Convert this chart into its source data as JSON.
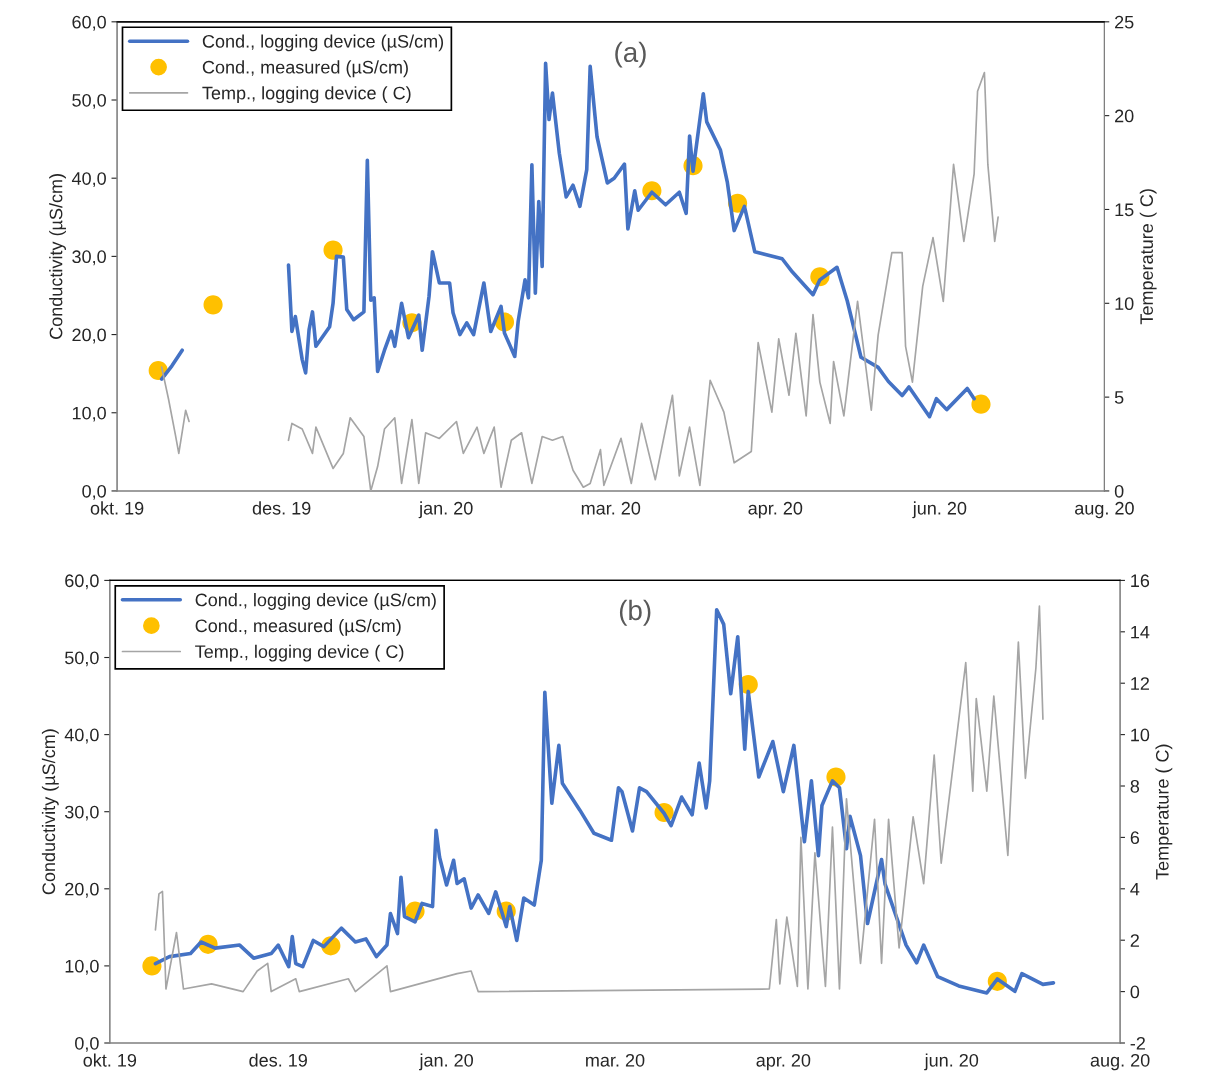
{
  "chart_data": [
    {
      "type": "line",
      "title": "(a)",
      "ylabel": "Conductivity (µS/cm)",
      "y2label": "Temperature ( C)",
      "legend": "top left",
      "grid": false,
      "xlim": [
        "2019-10-20",
        "2020-08-03"
      ],
      "xticks": [
        {
          "value": "2019-10-20",
          "label": "okt. 19"
        },
        {
          "value": "2019-12-07",
          "label": "des. 19"
        },
        {
          "value": "2020-01-24",
          "label": "jan. 20"
        },
        {
          "value": "2020-03-12",
          "label": "mar. 20"
        },
        {
          "value": "2020-04-29",
          "label": "apr. 20"
        },
        {
          "value": "2020-06-16",
          "label": "jun. 20"
        },
        {
          "value": "2020-08-03",
          "label": "aug. 20"
        }
      ],
      "ylim": [
        0,
        60
      ],
      "yticks": [
        {
          "value": 0,
          "label": "0,0"
        },
        {
          "value": 10,
          "label": "10,0"
        },
        {
          "value": 20,
          "label": "20,0"
        },
        {
          "value": 30,
          "label": "30,0"
        },
        {
          "value": 40,
          "label": "40,0"
        },
        {
          "value": 50,
          "label": "50,0"
        },
        {
          "value": 60,
          "label": "60,0"
        }
      ],
      "y2lim": [
        0,
        25
      ],
      "y2ticks": [
        0,
        5,
        10,
        15,
        20,
        25
      ],
      "series": [
        {
          "name": "Cond., logging device (µS/cm)",
          "color": "#4472c4",
          "marker": "none",
          "x": [
            "2019-11-02",
            "2019-11-05",
            "2019-11-08",
            "2019-11-20",
            "2019-12-09",
            "2019-12-10",
            "2019-12-11",
            "2019-12-13",
            "2019-12-14",
            "2019-12-15",
            "2019-12-16",
            "2019-12-17",
            "2019-12-21",
            "2019-12-22",
            "2019-12-23",
            "2019-12-25",
            "2019-12-26",
            "2019-12-28",
            "2019-12-31",
            "2020-01-01",
            "2020-01-02",
            "2020-01-03",
            "2020-01-04",
            "2020-01-06",
            "2020-01-08",
            "2020-01-09",
            "2020-01-11",
            "2020-01-13",
            "2020-01-16",
            "2020-01-17",
            "2020-01-19",
            "2020-01-20",
            "2020-01-22",
            "2020-01-25",
            "2020-01-26",
            "2020-01-28",
            "2020-01-30",
            "2020-02-01",
            "2020-02-04",
            "2020-02-06",
            "2020-02-09",
            "2020-02-10",
            "2020-02-13",
            "2020-02-14",
            "2020-02-16",
            "2020-02-17",
            "2020-02-18",
            "2020-02-19",
            "2020-02-20",
            "2020-02-21",
            "2020-02-22",
            "2020-02-23",
            "2020-02-24",
            "2020-02-26",
            "2020-02-28",
            "2020-03-01",
            "2020-03-03",
            "2020-03-05",
            "2020-03-06",
            "2020-03-08",
            "2020-03-11",
            "2020-03-13",
            "2020-03-16",
            "2020-03-17",
            "2020-03-19",
            "2020-03-20",
            "2020-03-24",
            "2020-03-28",
            "2020-04-01",
            "2020-04-03",
            "2020-04-04",
            "2020-04-05",
            "2020-04-08",
            "2020-04-09",
            "2020-04-13",
            "2020-04-15",
            "2020-04-17",
            "2020-04-20",
            "2020-04-23",
            "2020-05-01",
            "2020-05-04",
            "2020-05-10",
            "2020-05-12",
            "2020-05-17",
            "2020-05-20",
            "2020-05-24",
            "2020-05-29",
            "2020-06-01",
            "2020-06-05",
            "2020-06-07",
            "2020-06-13",
            "2020-06-15",
            "2020-06-18",
            "2020-06-24",
            "2020-06-26"
          ],
          "values": [
            14.3,
            16.0,
            18.0,
            null,
            28.9,
            20.4,
            22.3,
            16.8,
            15.1,
            20.6,
            22.9,
            18.5,
            21.0,
            24.0,
            30.0,
            29.9,
            23.2,
            21.9,
            22.9,
            42.3,
            24.4,
            24.7,
            15.3,
            18.0,
            20.4,
            18.5,
            24.0,
            19.6,
            22.5,
            18.0,
            24.9,
            30.6,
            26.6,
            26.6,
            22.8,
            20.0,
            21.5,
            20.0,
            26.6,
            20.4,
            23.6,
            20.2,
            17.2,
            21.7,
            27.0,
            24.7,
            41.7,
            25.3,
            37.0,
            28.7,
            54.7,
            47.5,
            50.9,
            43.2,
            37.6,
            39.1,
            36.4,
            41.1,
            54.3,
            45.3,
            39.4,
            40.0,
            41.8,
            33.5,
            38.4,
            35.9,
            38.2,
            36.6,
            38.2,
            35.5,
            45.4,
            40.9,
            50.8,
            47.2,
            43.6,
            39.5,
            33.3,
            36.4,
            30.6,
            29.7,
            28.0,
            25.1,
            27.0,
            28.6,
            24.3,
            17.1,
            15.8,
            14.0,
            12.2,
            13.3,
            9.5,
            11.8,
            10.4,
            13.1,
            11.8
          ]
        },
        {
          "name": "Cond., measured (µS/cm)",
          "type": "scatter",
          "color": "#ffc000",
          "marker": "circle",
          "x": [
            "2019-11-01",
            "2019-11-17",
            "2019-12-22",
            "2020-01-14",
            "2020-02-10",
            "2020-03-24",
            "2020-04-05",
            "2020-04-18",
            "2020-05-12",
            "2020-06-28"
          ],
          "values": [
            15.4,
            23.8,
            30.8,
            21.5,
            21.6,
            38.4,
            41.6,
            36.8,
            27.4,
            11.1
          ]
        },
        {
          "name": "Temp., logging device ( C)",
          "axis": "y2",
          "color": "#a5a5a5",
          "marker": "none",
          "x": [
            "2019-11-02",
            "2019-11-04",
            "2019-11-06",
            "2019-11-07",
            "2019-11-09",
            "2019-11-10",
            "2019-11-20",
            "2019-12-09",
            "2019-12-10",
            "2019-12-13",
            "2019-12-16",
            "2019-12-17",
            "2019-12-22",
            "2019-12-25",
            "2019-12-27",
            "2019-12-31",
            "2020-01-02",
            "2020-01-04",
            "2020-01-06",
            "2020-01-09",
            "2020-01-11",
            "2020-01-14",
            "2020-01-16",
            "2020-01-18",
            "2020-01-22",
            "2020-01-27",
            "2020-01-29",
            "2020-02-02",
            "2020-02-04",
            "2020-02-07",
            "2020-02-09",
            "2020-02-12",
            "2020-02-15",
            "2020-02-18",
            "2020-02-21",
            "2020-02-24",
            "2020-02-27",
            "2020-03-01",
            "2020-03-04",
            "2020-03-06",
            "2020-03-09",
            "2020-03-10",
            "2020-03-12",
            "2020-03-15",
            "2020-03-18",
            "2020-03-21",
            "2020-03-25",
            "2020-03-30",
            "2020-04-01",
            "2020-04-04",
            "2020-04-07",
            "2020-04-10",
            "2020-04-14",
            "2020-04-17",
            "2020-04-22",
            "2020-04-24",
            "2020-04-28",
            "2020-04-30",
            "2020-05-03",
            "2020-05-05",
            "2020-05-08",
            "2020-05-10",
            "2020-05-12",
            "2020-05-15",
            "2020-05-16",
            "2020-05-19",
            "2020-05-23",
            "2020-05-27",
            "2020-05-29",
            "2020-06-02",
            "2020-06-05",
            "2020-06-06",
            "2020-06-08",
            "2020-06-11",
            "2020-06-14",
            "2020-06-17",
            "2020-06-20",
            "2020-06-23",
            "2020-06-26",
            "2020-06-27",
            "2020-06-29",
            "2020-06-30",
            "2020-07-02",
            "2020-07-03"
          ],
          "values": [
            6.6,
            4.9,
            3.0,
            2.0,
            4.3,
            3.7,
            null,
            2.7,
            3.6,
            3.3,
            2.0,
            3.4,
            1.2,
            2.0,
            3.9,
            2.9,
            0.0,
            1.3,
            3.3,
            3.9,
            0.4,
            3.8,
            0.4,
            3.1,
            2.8,
            3.7,
            2.0,
            3.4,
            2.0,
            3.4,
            0.2,
            2.7,
            3.1,
            0.4,
            2.9,
            2.7,
            2.9,
            1.1,
            0.2,
            0.4,
            2.2,
            0.3,
            1.3,
            2.8,
            0.4,
            3.6,
            0.6,
            5.1,
            0.8,
            3.4,
            0.3,
            5.9,
            4.2,
            1.5,
            2.1,
            7.9,
            4.2,
            8.1,
            5.1,
            8.4,
            4.0,
            9.4,
            5.8,
            3.6,
            6.9,
            4.0,
            10.1,
            4.3,
            8.3,
            12.7,
            12.7,
            7.7,
            5.8,
            10.9,
            13.5,
            10.1,
            17.4,
            13.3,
            16.9,
            21.3,
            22.3,
            17.4,
            13.3,
            14.6
          ]
        }
      ]
    },
    {
      "type": "line",
      "title": "(b)",
      "ylabel": "Conductivity (µS/cm)",
      "y2label": "Temperature ( C)",
      "legend": "top left",
      "grid": false,
      "xlim": [
        "2019-10-20",
        "2020-08-03"
      ],
      "xticks": [
        {
          "value": "2019-10-20",
          "label": "okt. 19"
        },
        {
          "value": "2019-12-07",
          "label": "des. 19"
        },
        {
          "value": "2020-01-24",
          "label": "jan. 20"
        },
        {
          "value": "2020-03-12",
          "label": "mar. 20"
        },
        {
          "value": "2020-04-29",
          "label": "apr. 20"
        },
        {
          "value": "2020-06-16",
          "label": "jun. 20"
        },
        {
          "value": "2020-08-03",
          "label": "aug. 20"
        }
      ],
      "ylim": [
        0,
        60
      ],
      "yticks": [
        {
          "value": 0,
          "label": "0,0"
        },
        {
          "value": 10,
          "label": "10,0"
        },
        {
          "value": 20,
          "label": "20,0"
        },
        {
          "value": 30,
          "label": "30,0"
        },
        {
          "value": 40,
          "label": "40,0"
        },
        {
          "value": 50,
          "label": "50,0"
        },
        {
          "value": 60,
          "label": "60,0"
        }
      ],
      "y2lim": [
        -2,
        16
      ],
      "y2ticks": [
        {
          "value": -2,
          "label": "-2"
        },
        0,
        2,
        4,
        6,
        8,
        10,
        12,
        14,
        16
      ],
      "series": [
        {
          "name": "Cond., logging device (µS/cm)",
          "color": "#4472c4",
          "marker": "none",
          "x": [
            "2019-11-02",
            "2019-11-06",
            "2019-11-12",
            "2019-11-15",
            "2019-11-19",
            "2019-11-26",
            "2019-11-30",
            "2019-12-05",
            "2019-12-07",
            "2019-12-10",
            "2019-12-11",
            "2019-12-12",
            "2019-12-14",
            "2019-12-17",
            "2019-12-20",
            "2019-12-25",
            "2019-12-29",
            "2020-01-01",
            "2020-01-04",
            "2020-01-07",
            "2020-01-08",
            "2020-01-10",
            "2020-01-11",
            "2020-01-12",
            "2020-01-15",
            "2020-01-17",
            "2020-01-20",
            "2020-01-21",
            "2020-01-22",
            "2020-01-24",
            "2020-01-26",
            "2020-01-27",
            "2020-01-29",
            "2020-01-31",
            "2020-02-02",
            "2020-02-05",
            "2020-02-07",
            "2020-02-10",
            "2020-02-11",
            "2020-02-13",
            "2020-02-15",
            "2020-02-18",
            "2020-02-20",
            "2020-02-21",
            "2020-02-23",
            "2020-02-25",
            "2020-02-26",
            "2020-03-02",
            "2020-03-06",
            "2020-03-11",
            "2020-03-13",
            "2020-03-14",
            "2020-03-17",
            "2020-03-19",
            "2020-03-21",
            "2020-03-26",
            "2020-03-28",
            "2020-03-31",
            "2020-04-03",
            "2020-04-05",
            "2020-04-07",
            "2020-04-08",
            "2020-04-10",
            "2020-04-12",
            "2020-04-14",
            "2020-04-16",
            "2020-04-18",
            "2020-04-19",
            "2020-04-22",
            "2020-04-26",
            "2020-04-29",
            "2020-05-02",
            "2020-05-05",
            "2020-05-07",
            "2020-05-09",
            "2020-05-10",
            "2020-05-13",
            "2020-05-15",
            "2020-05-17",
            "2020-05-18",
            "2020-05-21",
            "2020-05-23",
            "2020-05-27",
            "2020-05-28",
            "2020-06-03",
            "2020-06-06",
            "2020-06-08",
            "2020-06-12",
            "2020-06-18",
            "2020-06-26",
            "2020-06-29",
            "2020-07-04",
            "2020-07-06",
            "2020-07-12",
            "2020-07-15"
          ],
          "values": [
            10.3,
            11.2,
            11.6,
            13.1,
            12.3,
            12.7,
            11.0,
            11.6,
            12.7,
            9.9,
            13.8,
            10.3,
            9.9,
            13.3,
            12.5,
            14.9,
            13.1,
            13.5,
            11.2,
            12.7,
            16.8,
            14.2,
            21.5,
            16.4,
            15.7,
            18.1,
            17.7,
            27.6,
            24.1,
            20.5,
            23.7,
            20.7,
            21.3,
            17.5,
            19.2,
            16.8,
            19.6,
            15.1,
            17.7,
            13.3,
            18.8,
            17.9,
            23.7,
            45.5,
            31.1,
            38.6,
            33.7,
            30.2,
            27.2,
            26.3,
            33.1,
            32.6,
            27.5,
            33.1,
            32.6,
            29.8,
            28.2,
            31.9,
            29.6,
            36.3,
            30.5,
            34.0,
            56.2,
            54.3,
            45.3,
            52.7,
            38.1,
            45.6,
            34.5,
            39.1,
            32.6,
            38.6,
            26.1,
            34.0,
            24.3,
            30.8,
            34.0,
            33.1,
            25.2,
            29.4,
            24.3,
            15.5,
            23.8,
            20.6,
            12.7,
            10.4,
            12.7,
            8.6,
            7.4,
            6.5,
            8.3,
            6.7,
            9.0,
            7.6,
            7.8
          ]
        },
        {
          "name": "Cond., measured (µS/cm)",
          "type": "scatter",
          "color": "#ffc000",
          "marker": "circle",
          "x": [
            "2019-11-01",
            "2019-11-17",
            "2019-12-22",
            "2020-01-15",
            "2020-02-10",
            "2020-03-26",
            "2020-04-19",
            "2020-05-14",
            "2020-06-29"
          ],
          "values": [
            10.0,
            12.8,
            12.6,
            17.1,
            17.1,
            29.9,
            46.5,
            34.5,
            8.0
          ]
        },
        {
          "name": "Temp., logging device ( C)",
          "axis": "y2",
          "color": "#a5a5a5",
          "marker": "none",
          "x": [
            "2019-11-02",
            "2019-11-03",
            "2019-11-04",
            "2019-11-05",
            "2019-11-08",
            "2019-11-10",
            "2019-11-18",
            "2019-11-27",
            "2019-12-01",
            "2019-12-04",
            "2019-12-05",
            "2019-12-12",
            "2019-12-13",
            "2019-12-27",
            "2019-12-29",
            "2020-01-07",
            "2020-01-08",
            "2020-01-27",
            "2020-01-31",
            "2020-02-02",
            "2020-04-25",
            "2020-04-27",
            "2020-04-28",
            "2020-04-30",
            "2020-05-03",
            "2020-05-04",
            "2020-05-06",
            "2020-05-08",
            "2020-05-11",
            "2020-05-13",
            "2020-05-15",
            "2020-05-17",
            "2020-05-21",
            "2020-05-25",
            "2020-05-27",
            "2020-05-29",
            "2020-06-01",
            "2020-06-05",
            "2020-06-08",
            "2020-06-11",
            "2020-06-13",
            "2020-06-20",
            "2020-06-22",
            "2020-06-23",
            "2020-06-26",
            "2020-06-28",
            "2020-07-02",
            "2020-07-05",
            "2020-07-07",
            "2020-07-10",
            "2020-07-11",
            "2020-07-12"
          ],
          "values": [
            2.4,
            3.8,
            3.9,
            0.1,
            2.3,
            0.1,
            0.3,
            0.0,
            0.8,
            1.1,
            0.0,
            0.5,
            0.0,
            0.5,
            0.0,
            1.0,
            0.0,
            0.7,
            0.8,
            0.0,
            0.1,
            2.8,
            0.3,
            2.9,
            0.2,
            6.0,
            0.1,
            5.4,
            0.2,
            6.4,
            0.1,
            7.5,
            1.1,
            6.7,
            1.1,
            6.7,
            1.7,
            6.8,
            4.2,
            9.2,
            5.0,
            12.8,
            7.8,
            11.4,
            7.8,
            11.5,
            5.3,
            13.6,
            8.3,
            12.6,
            15.0,
            10.6
          ]
        }
      ]
    }
  ]
}
